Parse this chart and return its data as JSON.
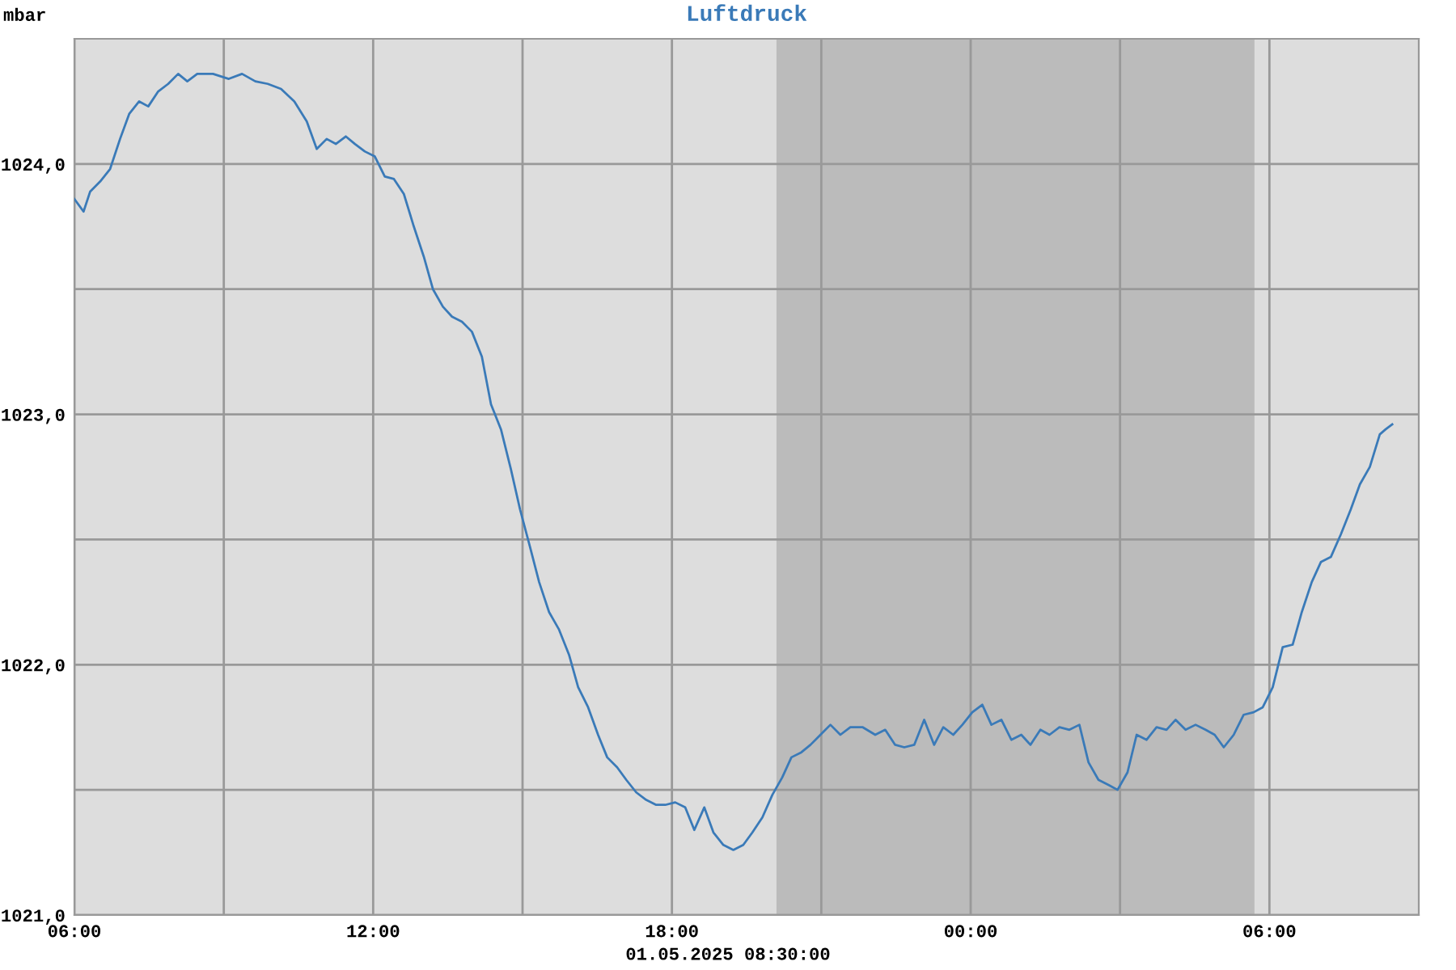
{
  "chart_data": {
    "type": "line",
    "title": "Luftdruck",
    "annotations": [
      "mbar",
      "01.05.2025 08:30:00"
    ],
    "x": [
      "2025-04-30T06:00",
      "2025-04-30T06:11",
      "2025-04-30T06:19",
      "2025-04-30T06:31",
      "2025-04-30T06:43",
      "2025-04-30T06:55",
      "2025-04-30T07:06",
      "2025-04-30T07:18",
      "2025-04-30T07:29",
      "2025-04-30T07:41",
      "2025-04-30T07:53",
      "2025-04-30T08:05",
      "2025-04-30T08:16",
      "2025-04-30T08:28",
      "2025-04-30T08:47",
      "2025-04-30T09:06",
      "2025-04-30T09:22",
      "2025-04-30T09:38",
      "2025-04-30T09:53",
      "2025-04-30T10:09",
      "2025-04-30T10:25",
      "2025-04-30T10:40",
      "2025-04-30T10:52",
      "2025-04-30T11:04",
      "2025-04-30T11:15",
      "2025-04-30T11:27",
      "2025-04-30T11:38",
      "2025-04-30T11:50",
      "2025-04-30T12:02",
      "2025-04-30T12:14",
      "2025-04-30T12:25",
      "2025-04-30T12:37",
      "2025-04-30T12:49",
      "2025-04-30T13:01",
      "2025-04-30T13:12",
      "2025-04-30T13:24",
      "2025-04-30T13:35",
      "2025-04-30T13:47",
      "2025-04-30T13:59",
      "2025-04-30T14:11",
      "2025-04-30T14:22",
      "2025-04-30T14:34",
      "2025-04-30T14:46",
      "2025-04-30T14:57",
      "2025-04-30T15:09",
      "2025-04-30T15:20",
      "2025-04-30T15:32",
      "2025-04-30T15:44",
      "2025-04-30T15:56",
      "2025-04-30T16:07",
      "2025-04-30T16:19",
      "2025-04-30T16:31",
      "2025-04-30T16:42",
      "2025-04-30T16:54",
      "2025-04-30T17:05",
      "2025-04-30T17:17",
      "2025-04-30T17:29",
      "2025-04-30T17:41",
      "2025-04-30T17:52",
      "2025-04-30T18:04",
      "2025-04-30T18:16",
      "2025-04-30T18:27",
      "2025-04-30T18:39",
      "2025-04-30T18:50",
      "2025-04-30T19:02",
      "2025-04-30T19:14",
      "2025-04-30T19:26",
      "2025-04-30T19:37",
      "2025-04-30T19:49",
      "2025-04-30T20:01",
      "2025-04-30T20:13",
      "2025-04-30T20:24",
      "2025-04-30T20:36",
      "2025-04-30T20:47",
      "2025-04-30T20:59",
      "2025-04-30T21:11",
      "2025-04-30T21:23",
      "2025-04-30T21:35",
      "2025-04-30T21:50",
      "2025-04-30T22:05",
      "2025-04-30T22:17",
      "2025-04-30T22:29",
      "2025-04-30T22:40",
      "2025-04-30T22:52",
      "2025-04-30T23:04",
      "2025-04-30T23:16",
      "2025-04-30T23:27",
      "2025-04-30T23:39",
      "2025-04-30T23:50",
      "2025-05-01T00:02",
      "2025-05-01T00:14",
      "2025-05-01T00:25",
      "2025-05-01T00:37",
      "2025-05-01T00:49",
      "2025-05-01T01:01",
      "2025-05-01T01:12",
      "2025-05-01T01:24",
      "2025-05-01T01:35",
      "2025-05-01T01:47",
      "2025-05-01T01:59",
      "2025-05-01T02:11",
      "2025-05-01T02:22",
      "2025-05-01T02:34",
      "2025-05-01T02:46",
      "2025-05-01T02:57",
      "2025-05-01T03:09",
      "2025-05-01T03:20",
      "2025-05-01T03:32",
      "2025-05-01T03:44",
      "2025-05-01T03:56",
      "2025-05-01T04:07",
      "2025-05-01T04:19",
      "2025-05-01T04:31",
      "2025-05-01T04:43",
      "2025-05-01T04:54",
      "2025-05-01T05:05",
      "2025-05-01T05:17",
      "2025-05-01T05:29",
      "2025-05-01T05:41",
      "2025-05-01T05:52",
      "2025-05-01T06:04",
      "2025-05-01T06:16",
      "2025-05-01T06:28",
      "2025-05-01T06:39",
      "2025-05-01T06:51",
      "2025-05-01T07:02",
      "2025-05-01T07:14",
      "2025-05-01T07:26",
      "2025-05-01T07:38",
      "2025-05-01T07:49",
      "2025-05-01T08:01",
      "2025-05-01T08:13",
      "2025-05-01T08:20",
      "2025-05-01T08:28"
    ],
    "series": [
      {
        "color": "#3a7ab8",
        "values": [
          1023.86,
          1023.81,
          1023.89,
          1023.93,
          1023.98,
          1024.1,
          1024.2,
          1024.25,
          1024.23,
          1024.29,
          1024.32,
          1024.36,
          1024.33,
          1024.36,
          1024.36,
          1024.34,
          1024.36,
          1024.33,
          1024.32,
          1024.3,
          1024.25,
          1024.17,
          1024.06,
          1024.1,
          1024.08,
          1024.11,
          1024.08,
          1024.05,
          1024.03,
          1023.95,
          1023.94,
          1023.88,
          1023.75,
          1023.63,
          1023.5,
          1023.43,
          1023.39,
          1023.37,
          1023.33,
          1023.23,
          1023.04,
          1022.94,
          1022.78,
          1022.62,
          1022.47,
          1022.33,
          1022.21,
          1022.14,
          1022.04,
          1021.91,
          1021.83,
          1021.72,
          1021.63,
          1021.59,
          1021.54,
          1021.49,
          1021.46,
          1021.44,
          1021.44,
          1021.45,
          1021.43,
          1021.34,
          1021.43,
          1021.33,
          1021.28,
          1021.26,
          1021.28,
          1021.33,
          1021.39,
          1021.48,
          1021.55,
          1021.63,
          1021.65,
          1021.68,
          1021.72,
          1021.76,
          1021.72,
          1021.75,
          1021.75,
          1021.72,
          1021.74,
          1021.68,
          1021.67,
          1021.68,
          1021.78,
          1021.68,
          1021.75,
          1021.72,
          1021.76,
          1021.81,
          1021.84,
          1021.76,
          1021.78,
          1021.7,
          1021.72,
          1021.68,
          1021.74,
          1021.72,
          1021.75,
          1021.74,
          1021.76,
          1021.61,
          1021.54,
          1021.52,
          1021.5,
          1021.57,
          1021.72,
          1021.7,
          1021.75,
          1021.74,
          1021.78,
          1021.74,
          1021.76,
          1021.74,
          1021.72,
          1021.67,
          1021.72,
          1021.8,
          1021.81,
          1021.83,
          1021.91,
          1022.07,
          1022.08,
          1022.21,
          1022.33,
          1022.41,
          1022.43,
          1022.52,
          1022.62,
          1022.72,
          1022.79,
          1022.92,
          1022.94,
          1022.96
        ]
      }
    ],
    "xlim": [
      "2025-04-30T06:00",
      "2025-05-01T09:00"
    ],
    "xticks": [
      {
        "value": "2025-04-30T06:00",
        "label": "06:00"
      },
      {
        "value": "2025-04-30T09:00",
        "label": null
      },
      {
        "value": "2025-04-30T12:00",
        "label": "12:00"
      },
      {
        "value": "2025-04-30T15:00",
        "label": null
      },
      {
        "value": "2025-04-30T18:00",
        "label": "18:00"
      },
      {
        "value": "2025-04-30T21:00",
        "label": null
      },
      {
        "value": "2025-05-01T00:00",
        "label": "00:00"
      },
      {
        "value": "2025-05-01T03:00",
        "label": null
      },
      {
        "value": "2025-05-01T06:00",
        "label": "06:00"
      }
    ],
    "ylim": [
      1021,
      1024.5
    ],
    "yticks": [
      {
        "value": 1021,
        "label": "1021,0"
      },
      {
        "value": 1021.5,
        "label": null
      },
      {
        "value": 1022,
        "label": "1022,0"
      },
      {
        "value": 1022.5,
        "label": null
      },
      {
        "value": 1023,
        "label": "1023,0"
      },
      {
        "value": 1023.5,
        "label": null
      },
      {
        "value": 1024,
        "label": "1024,0"
      }
    ],
    "bands": [
      {
        "axis": "x",
        "from": "2025-04-30T20:06",
        "to": "2025-05-01T05:42",
        "color": "#bbbbbb"
      }
    ],
    "grid": true,
    "legend": false
  }
}
